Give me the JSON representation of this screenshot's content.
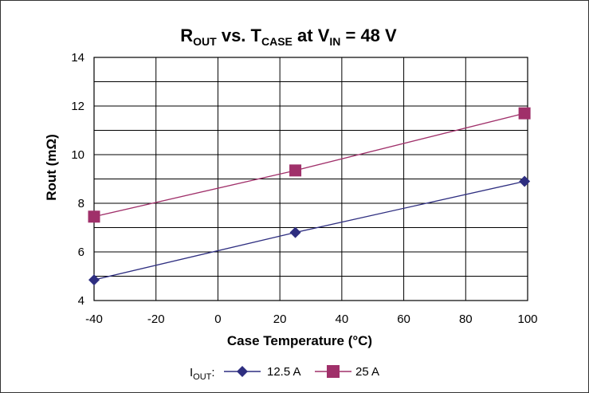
{
  "chart_data": {
    "type": "line",
    "title": {
      "r": "R",
      "r_sub": "OUT",
      "mid": " vs. ",
      "t": "T",
      "t_sub": "CASE",
      "at": " at ",
      "v": "V",
      "v_sub": "IN",
      "tail": " = 48 V"
    },
    "xlabel": "Case Temperature (°C)",
    "ylabel": "Rout (mΩ)",
    "xlim": [
      -40,
      100
    ],
    "ylim": [
      4,
      14
    ],
    "x_ticks": [
      -40,
      -20,
      0,
      20,
      40,
      60,
      80,
      100
    ],
    "y_ticks": [
      4,
      6,
      8,
      10,
      12,
      14
    ],
    "grid": true,
    "legend": {
      "prefix": "I",
      "prefix_sub": "OUT",
      "colon": ":",
      "placement": "bottom"
    },
    "series": [
      {
        "name": "12.5 A",
        "color": "#2e2e80",
        "marker": "diamond",
        "x": [
          -40,
          25,
          99
        ],
        "y": [
          4.85,
          6.8,
          8.9
        ]
      },
      {
        "name": "25 A",
        "color": "#a0306a",
        "marker": "square",
        "x": [
          -40,
          25,
          99
        ],
        "y": [
          7.45,
          9.35,
          11.7
        ]
      }
    ]
  }
}
